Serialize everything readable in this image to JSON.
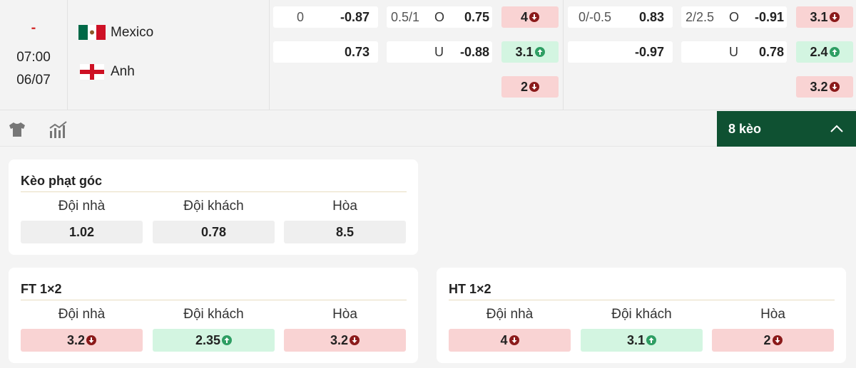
{
  "match": {
    "status": "-",
    "time": "07:00",
    "date": "06/07",
    "home": "Mexico",
    "away": "Anh"
  },
  "odds": [
    {
      "handicap": {
        "line": "0",
        "home": "-0.87",
        "away": "0.73"
      },
      "over_under": {
        "line": "0.5/1",
        "over_label": "O",
        "over": "0.75",
        "under_label": "U",
        "under": "-0.88"
      },
      "x12": [
        {
          "value": "4",
          "trend": "down"
        },
        {
          "value": "3.1",
          "trend": "up"
        },
        {
          "value": "2",
          "trend": "down"
        }
      ]
    },
    {
      "handicap": {
        "line": "0/-0.5",
        "home": "0.83",
        "away": "-0.97"
      },
      "over_under": {
        "line": "2/2.5",
        "over_label": "O",
        "over": "-0.91",
        "under_label": "U",
        "under": "0.78"
      },
      "x12": [
        {
          "value": "3.1",
          "trend": "down"
        },
        {
          "value": "2.4",
          "trend": "up"
        },
        {
          "value": "3.2",
          "trend": "down"
        }
      ]
    }
  ],
  "toolbar": {
    "more_button": "8 kèo"
  },
  "cards": [
    {
      "title": "Kèo phạt góc",
      "columns": [
        "Đội nhà",
        "Đội khách",
        "Hòa"
      ],
      "values": [
        {
          "value": "1.02"
        },
        {
          "value": "0.78"
        },
        {
          "value": "8.5"
        }
      ]
    },
    {
      "title": "FT 1×2",
      "columns": [
        "Đội nhà",
        "Đội khách",
        "Hòa"
      ],
      "values": [
        {
          "value": "3.2",
          "trend": "down"
        },
        {
          "value": "2.35",
          "trend": "up"
        },
        {
          "value": "3.2",
          "trend": "down"
        }
      ]
    },
    {
      "title": "HT 1×2",
      "columns": [
        "Đội nhà",
        "Đội khách",
        "Hòa"
      ],
      "values": [
        {
          "value": "4",
          "trend": "down"
        },
        {
          "value": "3.1",
          "trend": "up"
        },
        {
          "value": "2",
          "trend": "down"
        }
      ]
    }
  ]
}
